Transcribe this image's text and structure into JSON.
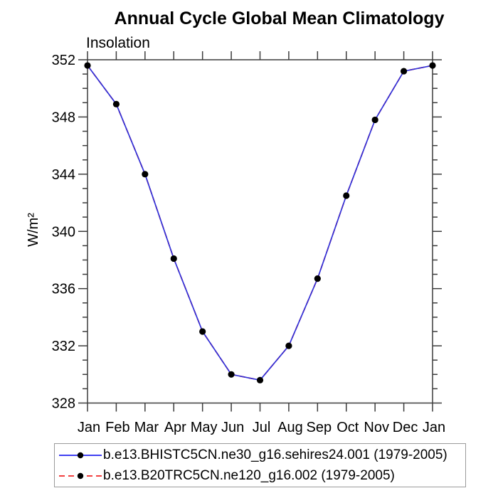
{
  "figure": {
    "title": "Annual Cycle Global Mean Climatology",
    "subtitle": "Insolation"
  },
  "chart_data": {
    "type": "line",
    "title": "Annual Cycle Global Mean Climatology",
    "subtitle": "Insolation",
    "ylabel": "W/m²",
    "xlabel": "",
    "x_tick_labels": [
      "Jan",
      "Feb",
      "Mar",
      "Apr",
      "May",
      "Jun",
      "Jul",
      "Aug",
      "Sep",
      "Oct",
      "Nov",
      "Dec",
      "Jan"
    ],
    "ylim": [
      328,
      352
    ],
    "y_major_tick_step": 4,
    "y_minor_tick_step": 1,
    "y_major_tick_labels": [
      "328",
      "332",
      "336",
      "340",
      "344",
      "348",
      "352"
    ],
    "grid": "off",
    "legend_position": "bottom",
    "series": [
      {
        "name": "b.e13.BHISTC5CN.ne30_g16.sehires24.001 (1979-2005)",
        "color": "#3030d8",
        "legend_color": "#0000ee",
        "line_style": "solid",
        "marker": "circle",
        "marker_color": "#000000",
        "values": [
          351.6,
          348.9,
          344.0,
          338.1,
          333.0,
          330.0,
          329.6,
          332.0,
          336.7,
          342.5,
          347.8,
          351.2,
          351.6
        ]
      },
      {
        "name": "b.e13.B20TRC5CN.ne120_g16.002 (1979-2005)",
        "color": "#ee0000",
        "legend_color": "#ee0000",
        "line_style": "dashed",
        "marker": "circle",
        "marker_color": "#000000",
        "values": [
          351.6,
          348.9,
          344.0,
          338.1,
          333.0,
          330.0,
          329.6,
          332.0,
          336.7,
          342.5,
          347.8,
          351.2,
          351.6
        ]
      }
    ]
  },
  "colors": {
    "axis": "#3c3c3c",
    "text": "#000000",
    "legend_border": "#9a9a9a"
  }
}
